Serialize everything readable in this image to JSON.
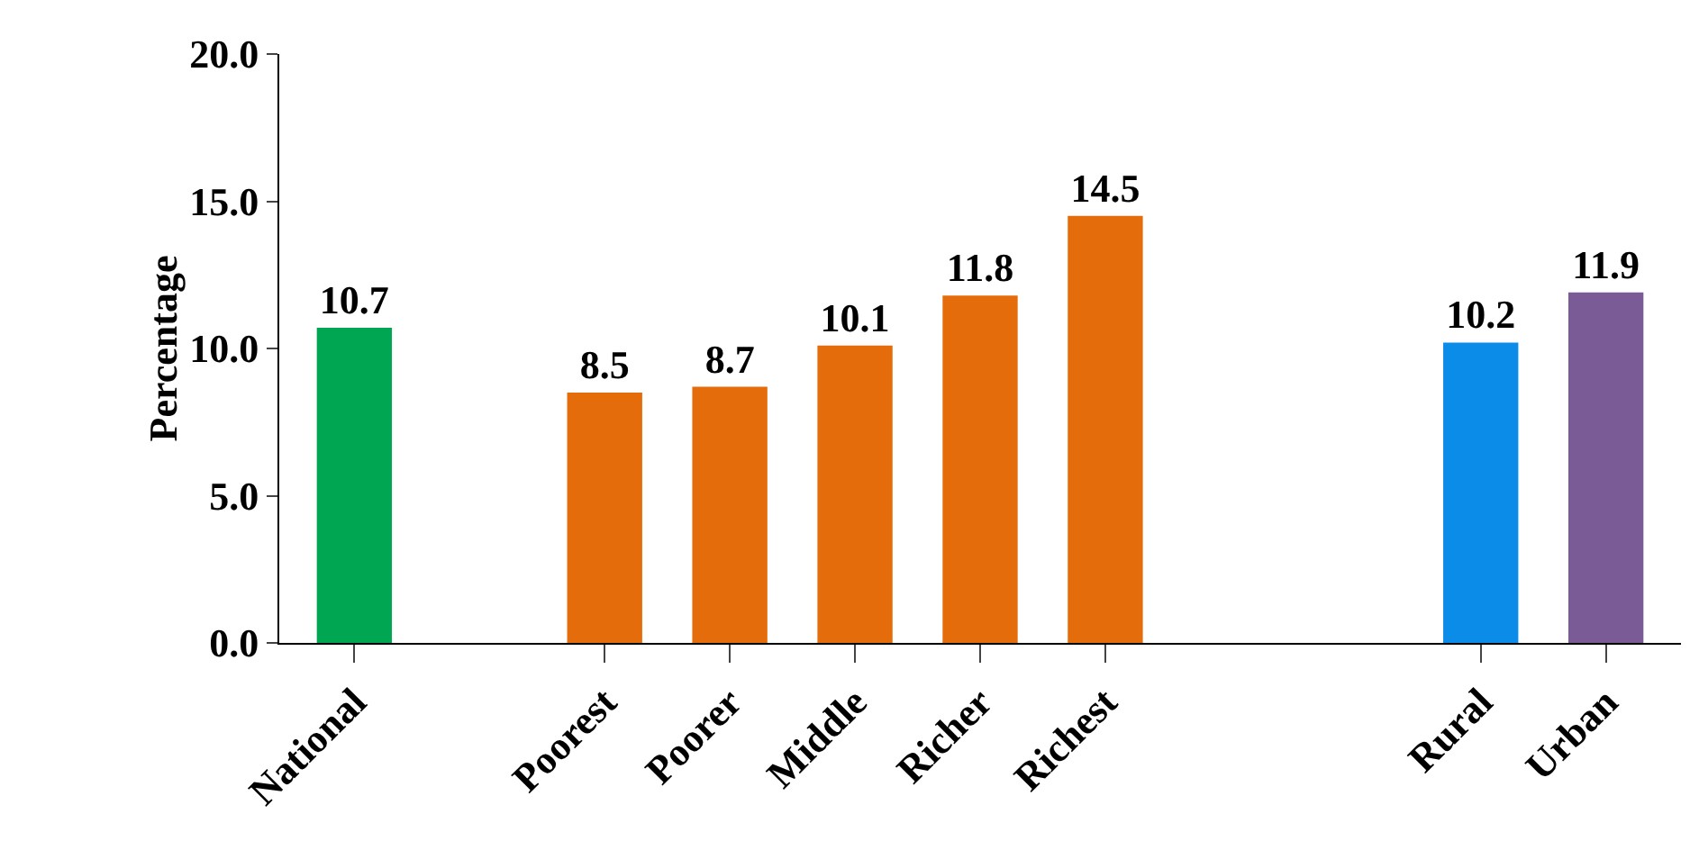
{
  "chart_data": {
    "type": "bar",
    "ylabel": "Percentage",
    "categories": [
      "National",
      null,
      "Poorest",
      "Poorer",
      "Middle",
      "Richer",
      "Richest",
      null,
      null,
      "Rural",
      "Urban"
    ],
    "values": [
      10.7,
      null,
      8.5,
      8.7,
      10.1,
      11.8,
      14.5,
      null,
      null,
      10.2,
      11.9
    ],
    "colors": [
      "#00a651",
      null,
      "#e46c0a",
      "#e46c0a",
      "#e46c0a",
      "#e46c0a",
      "#e46c0a",
      null,
      null,
      "#0b8ce9",
      "#7a5b96"
    ],
    "ylim": [
      0,
      20
    ],
    "yticks": [
      {
        "value": 0,
        "label": "0.0"
      },
      {
        "value": 5,
        "label": "5.0"
      },
      {
        "value": 10,
        "label": "10.0"
      },
      {
        "value": 15,
        "label": "15.0"
      },
      {
        "value": 20,
        "label": "20.0"
      }
    ],
    "data_labels": true,
    "grid": false
  }
}
